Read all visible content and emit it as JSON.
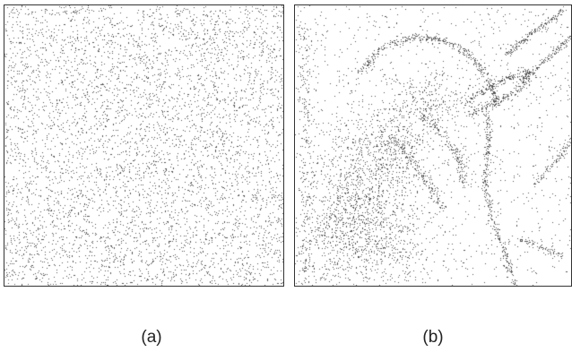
{
  "figure": {
    "panels": [
      {
        "caption": "(a)",
        "content": "uniform-random-stipple",
        "dot_color": "#555555"
      },
      {
        "caption": "(b)",
        "content": "edge-weighted-stipple",
        "dot_color": "#555555"
      }
    ]
  }
}
